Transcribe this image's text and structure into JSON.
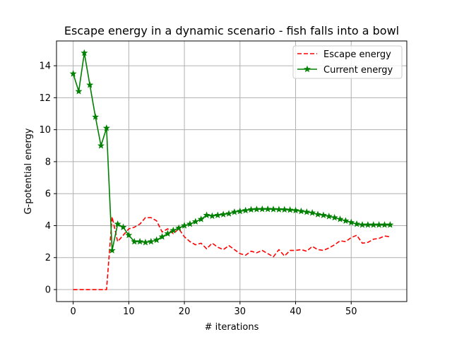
{
  "chart_data": {
    "type": "line",
    "title": "Escape energy in a dynamic scenario - fish falls into a bowl",
    "xlabel": "# iterations",
    "ylabel": "G-potential energy",
    "xlim": [
      -3,
      60
    ],
    "ylim": [
      -0.75,
      15.55
    ],
    "xticks": [
      0,
      10,
      20,
      30,
      40,
      50
    ],
    "yticks": [
      0,
      2,
      4,
      6,
      8,
      10,
      12,
      14
    ],
    "grid": true,
    "legend_position": "upper-right",
    "series": [
      {
        "name": "Escape energy",
        "color": "#ff0000",
        "linestyle": "dashed",
        "marker": "none",
        "x": [
          0,
          1,
          2,
          3,
          4,
          5,
          6,
          7,
          8,
          9,
          10,
          11,
          12,
          13,
          14,
          15,
          16,
          17,
          18,
          19,
          20,
          21,
          22,
          23,
          24,
          25,
          26,
          27,
          28,
          29,
          30,
          31,
          32,
          33,
          34,
          35,
          36,
          37,
          38,
          39,
          40,
          41,
          42,
          43,
          44,
          45,
          46,
          47,
          48,
          49,
          50,
          51,
          52,
          53,
          54,
          55,
          56,
          57
        ],
        "y": [
          0,
          0,
          0,
          0,
          0,
          0,
          0,
          4.55,
          3.0,
          3.4,
          3.8,
          3.9,
          4.1,
          4.5,
          4.5,
          4.3,
          3.6,
          3.8,
          3.5,
          3.8,
          3.3,
          3.0,
          2.8,
          2.9,
          2.55,
          2.9,
          2.65,
          2.5,
          2.75,
          2.5,
          2.25,
          2.15,
          2.4,
          2.3,
          2.45,
          2.25,
          2.05,
          2.5,
          2.1,
          2.45,
          2.45,
          2.5,
          2.4,
          2.7,
          2.5,
          2.45,
          2.6,
          2.8,
          3.05,
          3.0,
          3.25,
          3.4,
          2.9,
          2.95,
          3.15,
          3.2,
          3.35,
          3.3
        ]
      },
      {
        "name": "Current energy",
        "color": "#008000",
        "linestyle": "solid",
        "marker": "star",
        "x": [
          0,
          1,
          2,
          3,
          4,
          5,
          6,
          7,
          8,
          9,
          10,
          11,
          12,
          13,
          14,
          15,
          16,
          17,
          18,
          19,
          20,
          21,
          22,
          23,
          24,
          25,
          26,
          27,
          28,
          29,
          30,
          31,
          32,
          33,
          34,
          35,
          36,
          37,
          38,
          39,
          40,
          41,
          42,
          43,
          44,
          45,
          46,
          47,
          48,
          49,
          50,
          51,
          52,
          53,
          54,
          55,
          56,
          57
        ],
        "y": [
          13.5,
          12.4,
          14.8,
          12.8,
          10.8,
          9.0,
          10.1,
          2.45,
          4.1,
          3.9,
          3.4,
          3.0,
          3.0,
          2.95,
          3.0,
          3.1,
          3.3,
          3.5,
          3.7,
          3.85,
          4.0,
          4.1,
          4.25,
          4.4,
          4.65,
          4.6,
          4.65,
          4.7,
          4.75,
          4.85,
          4.9,
          4.95,
          5.0,
          5.02,
          5.03,
          5.03,
          5.02,
          5.01,
          5.0,
          4.98,
          4.95,
          4.9,
          4.85,
          4.8,
          4.7,
          4.65,
          4.58,
          4.5,
          4.4,
          4.3,
          4.2,
          4.1,
          4.05,
          4.05,
          4.05,
          4.05,
          4.05,
          4.05
        ]
      }
    ]
  }
}
